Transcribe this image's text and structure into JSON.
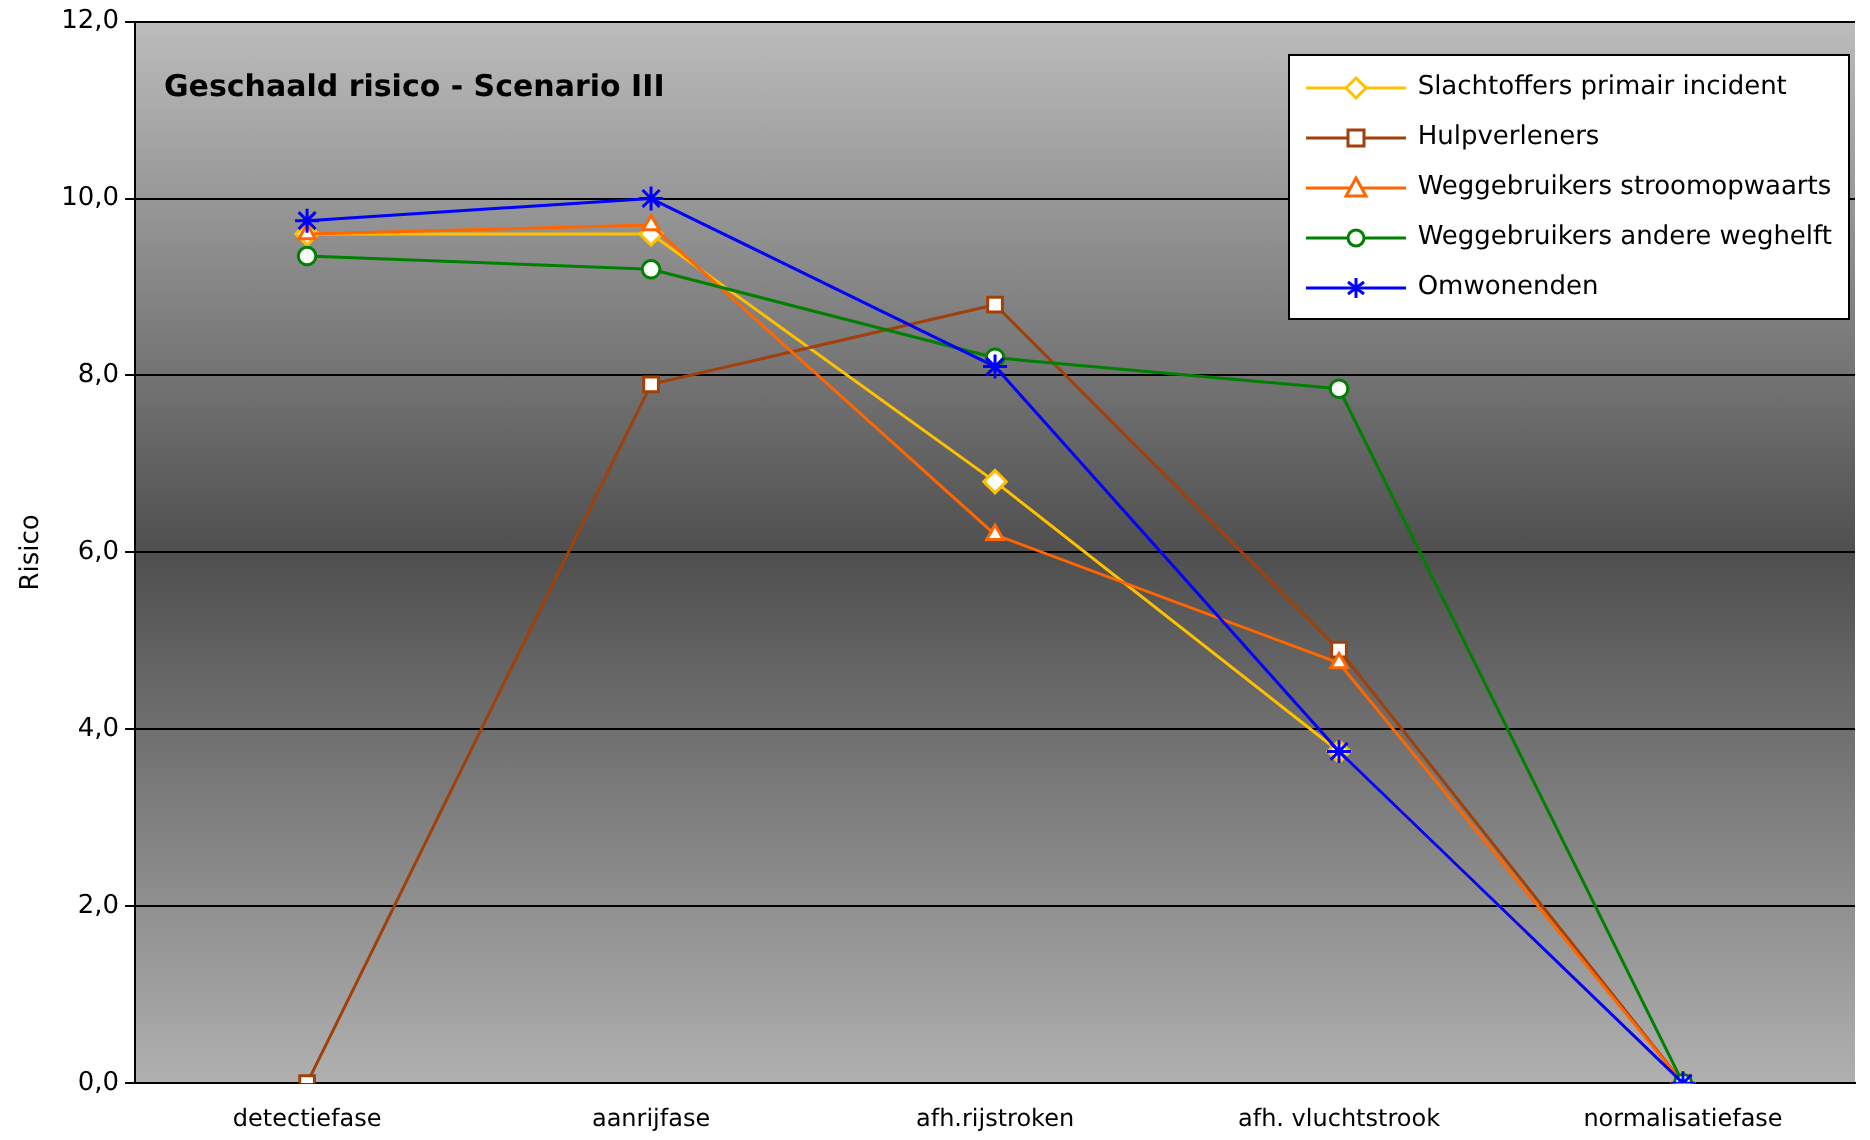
{
  "chart_data": {
    "type": "line",
    "title": "Geschaald risico - Scenario III",
    "ylabel": "Risico",
    "categories": [
      "detectiefase",
      "aanrijfase",
      "afh.rijstroken",
      "afh. vluchtstrook",
      "normalisatiefase"
    ],
    "series": [
      {
        "name": "Slachtoffers primair incident",
        "color": "#ffc000",
        "marker": "diamond",
        "values": [
          9.6,
          9.6,
          6.8,
          3.75,
          0
        ]
      },
      {
        "name": "Hulpverleners",
        "color": "#a0400a",
        "marker": "square",
        "values": [
          0,
          7.9,
          8.8,
          4.9,
          0
        ]
      },
      {
        "name": "Weggebruikers stroomopwaarts",
        "color": "#ff6600",
        "marker": "triangle",
        "values": [
          9.6,
          9.7,
          6.2,
          4.75,
          0
        ]
      },
      {
        "name": "Weggebruikers andere weghelft",
        "color": "#008000",
        "marker": "circle",
        "values": [
          9.35,
          9.2,
          8.2,
          7.85,
          0
        ]
      },
      {
        "name": "Omwonenden",
        "color": "#0000ff",
        "marker": "cross",
        "values": [
          9.75,
          10.0,
          8.1,
          3.75,
          0
        ]
      }
    ],
    "ylim": [
      0,
      12
    ],
    "yticks": [
      {
        "value": 0,
        "label": "0,0"
      },
      {
        "value": 2,
        "label": "2,0"
      },
      {
        "value": 4,
        "label": "4,0"
      },
      {
        "value": 6,
        "label": "6,0"
      },
      {
        "value": 8,
        "label": "8,0"
      },
      {
        "value": 10,
        "label": "10,0"
      },
      {
        "value": 12,
        "label": "12,0"
      }
    ],
    "grid": "y",
    "legend": "top right",
    "line_style": "solid"
  }
}
